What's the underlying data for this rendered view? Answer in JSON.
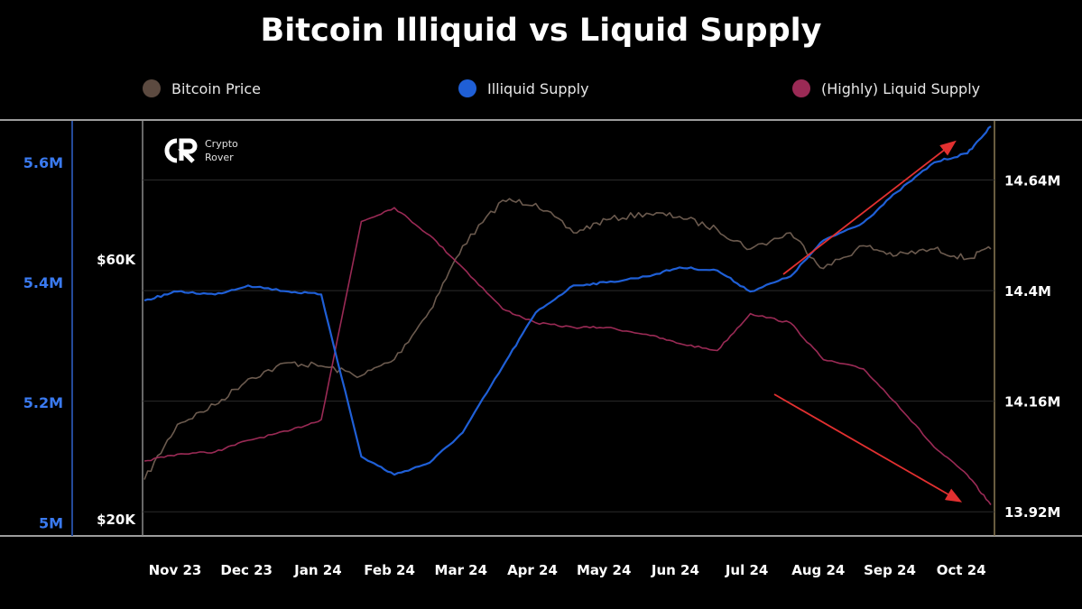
{
  "chart_data": {
    "type": "line",
    "title": "Bitcoin Illiquid vs Liquid Supply",
    "legend": {
      "placement": "top",
      "entries": [
        {
          "name": "Bitcoin Price",
          "color": "#5c4a40"
        },
        {
          "name": "Illiquid Supply",
          "color": "#1f5fd6"
        },
        {
          "name": "(Highly) Liquid Supply",
          "color": "#9a2a55"
        }
      ]
    },
    "x_tick_labels": [
      "Nov 23",
      "Dec 23",
      "Jan 24",
      "Feb 24",
      "Mar 24",
      "Apr 24",
      "May 24",
      "Jun 24",
      "Jul 24",
      "Aug 24",
      "Sep 24",
      "Oct 24"
    ],
    "x": [
      "2023-11-01",
      "2023-11-15",
      "2023-12-01",
      "2023-12-15",
      "2024-01-01",
      "2024-01-15",
      "2024-02-01",
      "2024-02-15",
      "2024-03-01",
      "2024-03-15",
      "2024-04-01",
      "2024-04-15",
      "2024-05-01",
      "2024-05-15",
      "2024-06-01",
      "2024-06-15",
      "2024-07-01",
      "2024-07-15",
      "2024-08-01",
      "2024-08-15",
      "2024-09-01",
      "2024-09-15",
      "2024-10-01",
      "2024-10-15",
      "2024-10-25"
    ],
    "axes": {
      "left_outer": {
        "label": "",
        "ticks": [
          "5M",
          "5.2M",
          "5.4M",
          "5.6M"
        ],
        "range": [
          4.996,
          5.645
        ],
        "color": "#3a7af0"
      },
      "left_inner": {
        "label": "",
        "ticks": [
          "$20K",
          "$60K"
        ],
        "range": [
          19000,
          79000
        ],
        "color": "#ffffff"
      },
      "right": {
        "label": "",
        "ticks": [
          "13.92M",
          "14.16M",
          "14.4M",
          "14.64M"
        ],
        "range": [
          13.891,
          14.737
        ],
        "color": "#ffffff"
      }
    },
    "grid": true,
    "series": [
      {
        "name": "Bitcoin Price",
        "axis": "left_inner",
        "color": "#6b5a4e",
        "values": [
          26000,
          34500,
          37500,
          41500,
          44000,
          43500,
          42000,
          44500,
          52000,
          62000,
          69000,
          68500,
          64000,
          66000,
          67000,
          66500,
          64500,
          61500,
          64000,
          58500,
          62000,
          60500,
          61500,
          60000,
          61500
        ]
      },
      {
        "name": "Illiquid Supply",
        "axis": "left_outer",
        "color": "#1f5fd6",
        "values": [
          5.37,
          5.385,
          5.38,
          5.395,
          5.385,
          5.38,
          5.11,
          5.08,
          5.1,
          5.15,
          5.26,
          5.35,
          5.395,
          5.4,
          5.41,
          5.425,
          5.42,
          5.385,
          5.41,
          5.47,
          5.5,
          5.55,
          5.6,
          5.615,
          5.66
        ]
      },
      {
        "name": "(Highly) Liquid Supply",
        "axis": "right",
        "color": "#9a2a55",
        "values": [
          14.03,
          14.045,
          14.05,
          14.075,
          14.095,
          14.12,
          14.55,
          14.58,
          14.52,
          14.45,
          14.36,
          14.33,
          14.32,
          14.32,
          14.305,
          14.285,
          14.27,
          14.35,
          14.33,
          14.25,
          14.23,
          14.155,
          14.06,
          14.0,
          13.935
        ]
      }
    ],
    "annotations": [
      {
        "type": "arrow",
        "color": "#e23030",
        "from": "2024-08-01",
        "to": "2024-10-15",
        "direction": "up"
      },
      {
        "type": "arrow",
        "color": "#e23030",
        "from": "2024-08-01",
        "to": "2024-10-15",
        "direction": "down"
      }
    ]
  },
  "watermark": {
    "line1": "Crypto",
    "line2": "Rover"
  }
}
